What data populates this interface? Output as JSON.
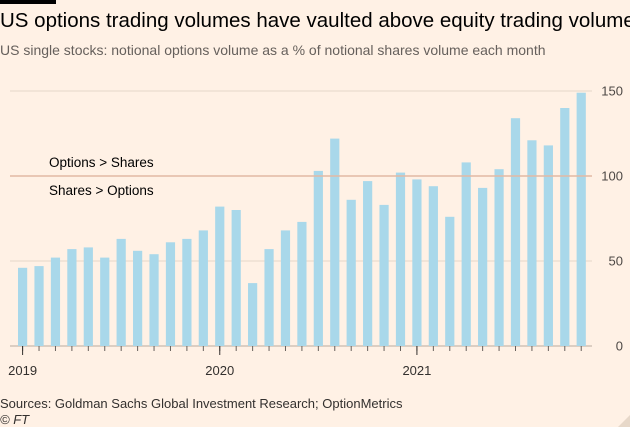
{
  "header": {
    "title": "US options trading volumes have vaulted above equity trading volumes",
    "subtitle": "US single stocks: notional options volume as a % of notional shares volume each month"
  },
  "footer": {
    "source": "Sources: Goldman Sachs Global Investment Research; OptionMetrics",
    "credit": "© FT"
  },
  "colors": {
    "background": "#fff1e5",
    "bar": "#a9d8ea",
    "grid": "#e5d6c9",
    "reference_line": "#e2b9a4"
  },
  "chart_data": {
    "type": "bar",
    "title": "US options trading volumes have vaulted above equity trading volumes",
    "subtitle": "US single stocks: notional options volume as a % of notional shares volume each month",
    "xlabel": "",
    "ylabel": "",
    "ylim": [
      0,
      150
    ],
    "yticks": [
      0,
      50,
      100,
      150
    ],
    "y_axis_side": "right",
    "grid": true,
    "categories": [
      "2019-01",
      "2019-02",
      "2019-03",
      "2019-04",
      "2019-05",
      "2019-06",
      "2019-07",
      "2019-08",
      "2019-09",
      "2019-10",
      "2019-11",
      "2019-12",
      "2020-01",
      "2020-02",
      "2020-03",
      "2020-04",
      "2020-05",
      "2020-06",
      "2020-07",
      "2020-08",
      "2020-09",
      "2020-10",
      "2020-11",
      "2020-12",
      "2021-01",
      "2021-02",
      "2021-03",
      "2021-04",
      "2021-05",
      "2021-06",
      "2021-07",
      "2021-08",
      "2021-09",
      "2021-10",
      "2021-11"
    ],
    "values": [
      46,
      47,
      52,
      57,
      58,
      52,
      63,
      56,
      54,
      61,
      63,
      68,
      82,
      80,
      37,
      57,
      68,
      73,
      103,
      122,
      86,
      97,
      83,
      102,
      98,
      94,
      76,
      108,
      93,
      104,
      134,
      121,
      118,
      140,
      149
    ],
    "x_tick_labels": [
      {
        "label": "2019",
        "index": 0
      },
      {
        "label": "2020",
        "index": 12
      },
      {
        "label": "2021",
        "index": 24
      }
    ],
    "reference_line": {
      "value": 100,
      "label_above": "Options > Shares",
      "label_below": "Shares > Options"
    }
  }
}
